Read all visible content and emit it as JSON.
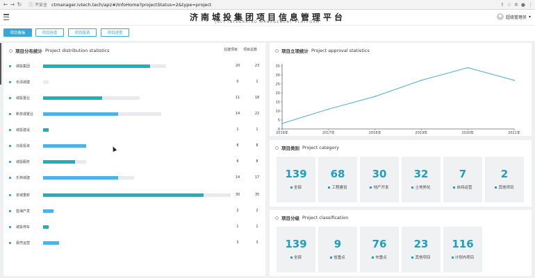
{
  "browser": {
    "insecure_label": "不安全",
    "url": "ctmanager.ivtech.tech/api/#/InfoHome?projectStatus=2&type=project"
  },
  "header": {
    "title": "济南城投集团项目信息管理平台",
    "subtitle": "JNCI INTEGRATED MANAGEMENT PLATFORM",
    "user_name": "超级管理员"
  },
  "tabs": [
    {
      "label": "项目看板",
      "active": true
    },
    {
      "label": "项目信息",
      "active": false
    },
    {
      "label": "项目投资",
      "active": false
    },
    {
      "label": "项目进度",
      "active": false
    }
  ],
  "distribution": {
    "title_cn": "项目分布统计",
    "title_en": "Project distribution statistics",
    "col1": "在建项目",
    "col2": "项目总数",
    "max": 35,
    "rows": [
      {
        "name": "城投集团",
        "v1": 20,
        "v2": 23,
        "color": "#1bb2b8"
      },
      {
        "name": "长清城建",
        "v1": 0,
        "v2": 1,
        "color": "#4cb3e6"
      },
      {
        "name": "城投置业",
        "v1": 11,
        "v2": 18,
        "color": "#1bb2b8"
      },
      {
        "name": "新泉城置业",
        "v1": 14,
        "v2": 22,
        "color": "#4cb3e6"
      },
      {
        "name": "城投建设",
        "v1": 1,
        "v2": 1,
        "color": "#1bb2b8"
      },
      {
        "name": "泺投投资",
        "v1": 8,
        "v2": 8,
        "color": "#4cb3e6"
      },
      {
        "name": "城投服务",
        "v1": 6,
        "v2": 8,
        "color": "#1bb2b8"
      },
      {
        "name": "乐林城建",
        "v1": 14,
        "v2": 17,
        "color": "#4cb3e6"
      },
      {
        "name": "泉城重新",
        "v1": 30,
        "v2": 35,
        "color": "#1bb2b8"
      },
      {
        "name": "蓝海产发",
        "v1": 2,
        "v2": 2,
        "color": "#4cb3e6"
      },
      {
        "name": "城投停车",
        "v1": 1,
        "v2": 1,
        "color": "#1bb2b8"
      },
      {
        "name": "晨然运营",
        "v1": 3,
        "v2": 3,
        "color": "#4cb3e6"
      }
    ]
  },
  "approval": {
    "title_cn": "项目立项统计",
    "title_en": "Project approval statistics"
  },
  "chart_data": {
    "type": "line",
    "x": [
      "2016年",
      "2017年",
      "2018年",
      "2019年",
      "2020年",
      "2021年"
    ],
    "y": [
      3,
      11,
      18,
      27,
      34,
      27
    ],
    "yticks": [
      0,
      5,
      10,
      15,
      20,
      25,
      30,
      35
    ],
    "ylim": [
      0,
      35
    ],
    "color": "#5ab4d6",
    "grid": false
  },
  "category": {
    "title_cn": "项目类别",
    "title_en": "Project category",
    "items": [
      {
        "value": "139",
        "label": "全部"
      },
      {
        "value": "68",
        "label": "工程建设"
      },
      {
        "value": "30",
        "label": "地产开发"
      },
      {
        "value": "32",
        "label": "土地熟化"
      },
      {
        "value": "7",
        "label": "自持运营"
      },
      {
        "value": "2",
        "label": "其他项目"
      }
    ]
  },
  "classification": {
    "title_cn": "项目分级",
    "title_en": "Project classification",
    "items": [
      {
        "value": "139",
        "label": "全部"
      },
      {
        "value": "9",
        "label": "省重点"
      },
      {
        "value": "76",
        "label": "市重点"
      },
      {
        "value": "23",
        "label": "其他项目"
      },
      {
        "value": "116",
        "label": "计划内项目"
      }
    ]
  }
}
